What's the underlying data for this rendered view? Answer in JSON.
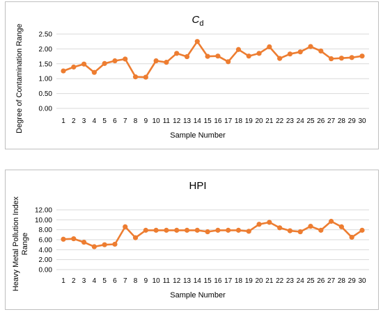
{
  "colors": {
    "series": "#ED7D31",
    "grid": "#D9D9D9",
    "frame": "#BFBFBF"
  },
  "chart_data": [
    {
      "type": "line",
      "title_main": "C",
      "title_sub": "d",
      "xlabel": "Sample Number",
      "ylabel": "Degree of Contamination Range",
      "ylim": [
        0,
        2.5
      ],
      "yticks": [
        "0.00",
        "0.50",
        "1.00",
        "1.50",
        "2.00",
        "2.50"
      ],
      "ytick_values": [
        0,
        0.5,
        1,
        1.5,
        2,
        2.5
      ],
      "grid": true,
      "categories": [
        "1",
        "2",
        "3",
        "4",
        "5",
        "6",
        "7",
        "8",
        "9",
        "10",
        "11",
        "12",
        "13",
        "14",
        "15",
        "16",
        "17",
        "18",
        "19",
        "20",
        "21",
        "22",
        "23",
        "24",
        "25",
        "26",
        "27",
        "28",
        "29",
        "30"
      ],
      "values": [
        1.26,
        1.39,
        1.49,
        1.21,
        1.51,
        1.6,
        1.66,
        1.06,
        1.05,
        1.6,
        1.55,
        1.85,
        1.74,
        2.25,
        1.75,
        1.76,
        1.57,
        1.98,
        1.76,
        1.85,
        2.07,
        1.68,
        1.83,
        1.9,
        2.08,
        1.93,
        1.67,
        1.69,
        1.71,
        1.76
      ]
    },
    {
      "type": "line",
      "title_main": "HPI",
      "title_sub": "",
      "xlabel": "Sample Number",
      "ylabel_lines": [
        "Heavy Metal Pollution Index",
        "Range"
      ],
      "ylim": [
        0,
        12
      ],
      "yticks": [
        "0.00",
        "2.00",
        "4.00",
        "6.00",
        "8.00",
        "10.00",
        "12.00"
      ],
      "ytick_values": [
        0,
        2,
        4,
        6,
        8,
        10,
        12
      ],
      "grid": true,
      "categories": [
        "1",
        "2",
        "3",
        "4",
        "5",
        "6",
        "7",
        "8",
        "9",
        "10",
        "11",
        "12",
        "13",
        "14",
        "15",
        "16",
        "17",
        "18",
        "19",
        "20",
        "21",
        "22",
        "23",
        "24",
        "25",
        "26",
        "27",
        "28",
        "29",
        "30"
      ],
      "values": [
        6.1,
        6.2,
        5.5,
        4.6,
        5.0,
        5.1,
        8.6,
        6.4,
        7.9,
        7.9,
        7.9,
        7.9,
        7.9,
        7.9,
        7.6,
        7.9,
        7.9,
        7.9,
        7.7,
        9.1,
        9.5,
        8.4,
        7.8,
        7.6,
        8.7,
        7.9,
        9.7,
        8.6,
        6.5,
        7.9
      ]
    }
  ]
}
